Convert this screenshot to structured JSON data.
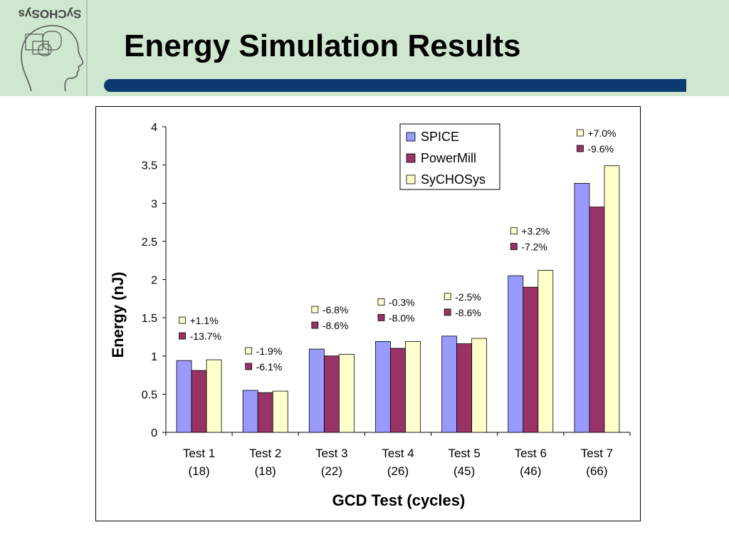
{
  "slide": {
    "title": "Energy Simulation Results",
    "logo_text": "SyCHOSys"
  },
  "colors": {
    "header_bg": "#cfe6cf",
    "title_bar": "#0d3a6e",
    "spice": "#9999ff",
    "powermill": "#993366",
    "sychosys": "#ffffcc"
  },
  "chart_data": {
    "type": "bar",
    "title": "",
    "xlabel": "GCD Test (cycles)",
    "ylabel": "Energy (nJ)",
    "ylim": [
      0,
      4
    ],
    "yticks": [
      "0",
      "0.5",
      "1",
      "1.5",
      "2",
      "2.5",
      "3",
      "3.5",
      "4"
    ],
    "grid": false,
    "legend_position": "top-right",
    "categories": [
      {
        "name": "Test 1",
        "cycles": "(18)"
      },
      {
        "name": "Test 2",
        "cycles": "(18)"
      },
      {
        "name": "Test 3",
        "cycles": "(22)"
      },
      {
        "name": "Test 4",
        "cycles": "(26)"
      },
      {
        "name": "Test 5",
        "cycles": "(45)"
      },
      {
        "name": "Test 6",
        "cycles": "(46)"
      },
      {
        "name": "Test 7",
        "cycles": "(66)"
      }
    ],
    "series": [
      {
        "name": "SPICE",
        "color": "#9999ff",
        "values": [
          0.94,
          0.55,
          1.09,
          1.19,
          1.26,
          2.05,
          3.26
        ]
      },
      {
        "name": "PowerMill",
        "color": "#993366",
        "values": [
          0.81,
          0.52,
          1.0,
          1.1,
          1.16,
          1.9,
          2.95
        ]
      },
      {
        "name": "SyCHOSys",
        "color": "#ffffcc",
        "values": [
          0.95,
          0.54,
          1.02,
          1.19,
          1.23,
          2.12,
          3.49
        ]
      }
    ],
    "annotations": [
      {
        "test": "Test 1",
        "sychosys_diff": "+1.1%",
        "powermill_diff": "-13.7%"
      },
      {
        "test": "Test 2",
        "sychosys_diff": "-1.9%",
        "powermill_diff": "-6.1%"
      },
      {
        "test": "Test 3",
        "sychosys_diff": "-6.8%",
        "powermill_diff": "-8.6%"
      },
      {
        "test": "Test 4",
        "sychosys_diff": "-0.3%",
        "powermill_diff": "-8.0%"
      },
      {
        "test": "Test 5",
        "sychosys_diff": "-2.5%",
        "powermill_diff": "-8.6%"
      },
      {
        "test": "Test 6",
        "sychosys_diff": "+3.2%",
        "powermill_diff": "-7.2%"
      },
      {
        "test": "Test 7",
        "sychosys_diff": "+7.0%",
        "powermill_diff": "-9.6%"
      }
    ]
  }
}
